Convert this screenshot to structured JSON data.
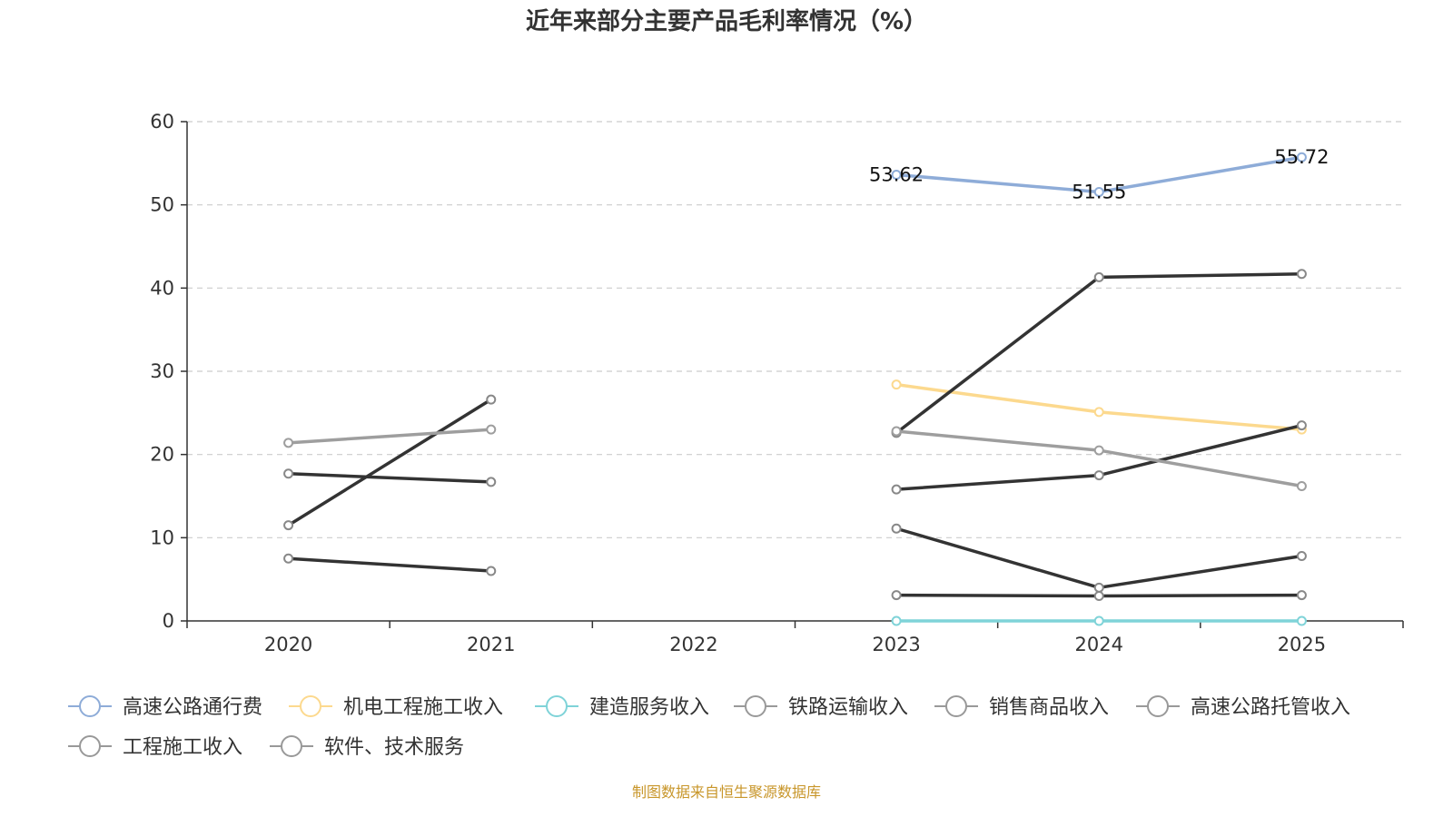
{
  "chart_data": {
    "type": "line",
    "title": "近年来部分主要产品毛利率情况（%）",
    "x": [
      "2020",
      "2021",
      "2022",
      "2023",
      "2024",
      "2025"
    ],
    "ylim": [
      0,
      60
    ],
    "yticks": [
      0,
      10,
      20,
      30,
      40,
      50,
      60
    ],
    "grid": true,
    "legend_position": "bottom",
    "series": [
      {
        "name": "高速公路通行费",
        "color": "#8eacd8",
        "values": [
          null,
          null,
          null,
          53.62,
          51.55,
          55.72
        ],
        "labels": true
      },
      {
        "name": "机电工程施工收入",
        "color": "#fcd98e",
        "values": [
          null,
          null,
          null,
          28.4,
          25.1,
          23.0
        ]
      },
      {
        "name": "建造服务收入",
        "color": "#7fd3d8",
        "values": [
          null,
          null,
          null,
          0.0,
          0.0,
          0.0
        ]
      },
      {
        "name": "铁路运输收入",
        "color": "#333333",
        "values": [
          11.5,
          26.6,
          null,
          22.6,
          41.3,
          41.7
        ]
      },
      {
        "name": "销售商品收入",
        "color": "#333333",
        "values": [
          17.7,
          16.7,
          null,
          15.8,
          17.5,
          23.5
        ]
      },
      {
        "name": "高速公路托管收入",
        "color": "#333333",
        "values": [
          7.5,
          6.0,
          null,
          11.1,
          4.0,
          7.8
        ]
      },
      {
        "name": "工程施工收入",
        "color": "#9e9e9e",
        "values": [
          21.4,
          23.0,
          null,
          22.8,
          20.5,
          16.2
        ]
      },
      {
        "name": "软件、技术服务",
        "color": "#333333",
        "values": [
          null,
          null,
          null,
          3.1,
          3.0,
          3.1
        ]
      }
    ]
  },
  "legend_marker_color": "#999999",
  "source_text": "制图数据来自恒生聚源数据库"
}
